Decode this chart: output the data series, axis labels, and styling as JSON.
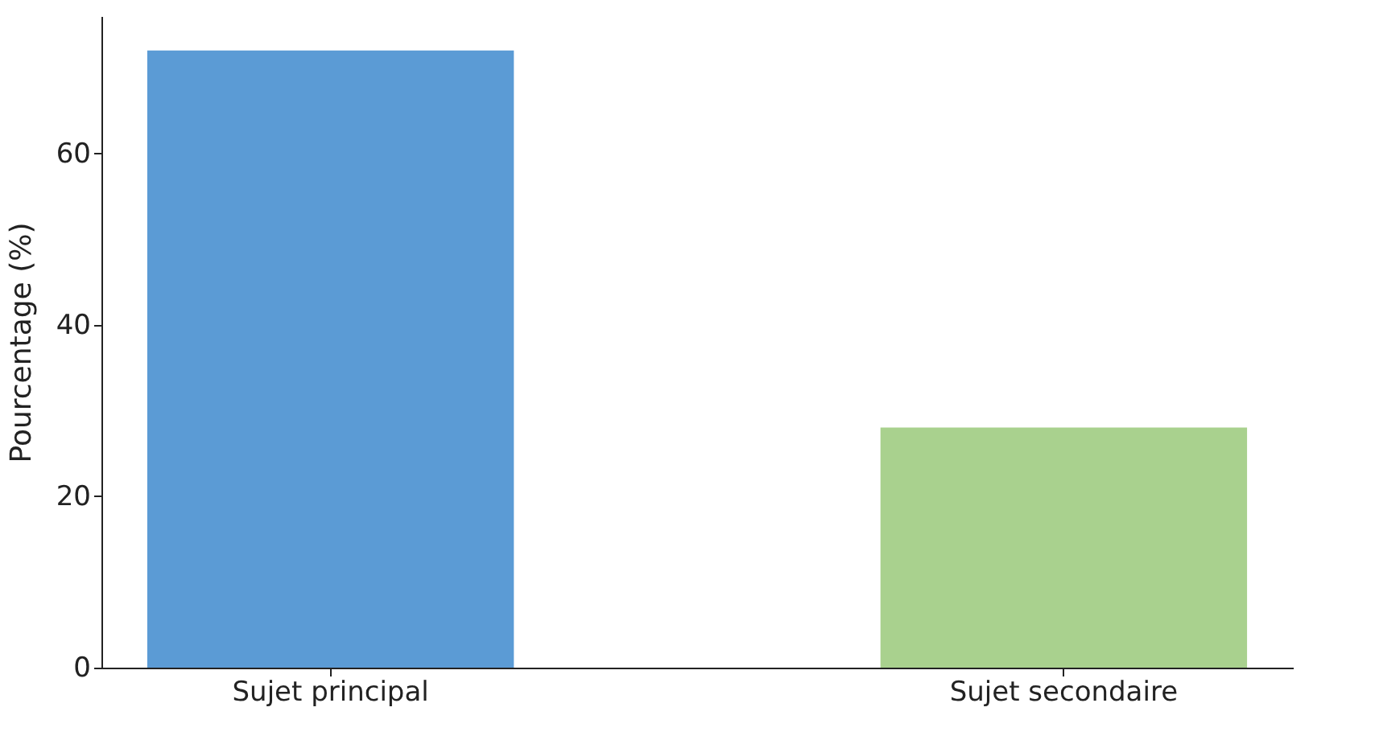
{
  "chart_data": {
    "type": "bar",
    "ylabel": "Pourcentage (%)",
    "categories": [
      "Sujet principal",
      "Sujet secondaire"
    ],
    "values": [
      72,
      28
    ],
    "colors": [
      "#5b9bd5",
      "#a9d18e"
    ],
    "ylim": [
      0,
      76
    ],
    "yticks": [
      0,
      20,
      40,
      60
    ],
    "grid": false
  }
}
